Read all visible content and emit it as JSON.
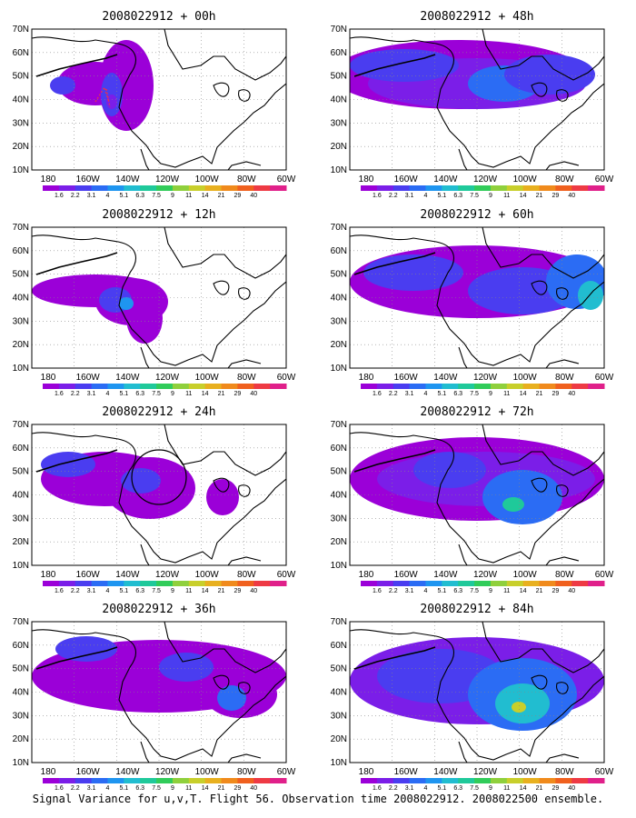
{
  "lat_labels": [
    "70N",
    "60N",
    "50N",
    "40N",
    "30N",
    "20N",
    "10N"
  ],
  "lon_labels": [
    "180",
    "160W",
    "140W",
    "120W",
    "100W",
    "80W",
    "60W"
  ],
  "colorbar": {
    "colors": [
      "#9b00d8",
      "#7b1ee8",
      "#4a3df0",
      "#2b6cf4",
      "#1e95f0",
      "#21bdd0",
      "#1fc99a",
      "#31cc5a",
      "#8fd03c",
      "#c8cf2b",
      "#e8b01f",
      "#f08a1c",
      "#f0601e",
      "#ee3a44",
      "#e0208a"
    ],
    "labels": [
      "1.6",
      "2.2",
      "3.1",
      "4",
      "5.1",
      "6.3",
      "7.5",
      "9",
      "11",
      "14",
      "21",
      "29",
      "40"
    ]
  },
  "panels": [
    {
      "title": "2008022912 + 00h"
    },
    {
      "title": "2008022912 + 48h"
    },
    {
      "title": "2008022912 + 12h"
    },
    {
      "title": "2008022912 + 60h"
    },
    {
      "title": "2008022912 + 24h"
    },
    {
      "title": "2008022912 + 72h"
    },
    {
      "title": "2008022912 + 36h"
    },
    {
      "title": "2008022912 + 84h"
    }
  ],
  "caption": "Signal Variance for u,v,T. Flight 56. Observation time 2008022912. 2008022500 ensemble."
}
